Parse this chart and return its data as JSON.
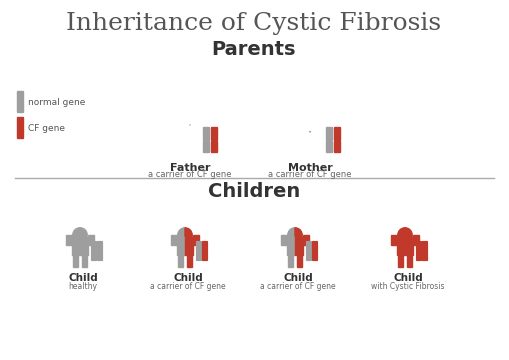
{
  "title": "Inheritance of Cystic Fibrosis",
  "title_fontsize": 18,
  "parents_label": "Parents",
  "children_label": "Children",
  "section_label_fontsize": 14,
  "gray": "#9e9e9e",
  "red": "#c0392b",
  "light_gray": "#bdbdbd",
  "bg_color": "#ffffff",
  "legend_normal": "normal gene",
  "legend_cf": "CF gene",
  "father_label": "Father",
  "father_sub": "a carrier of CF gene",
  "mother_label": "Mother",
  "mother_sub": "a carrier of CF gene",
  "child_labels": [
    "Child",
    "Child",
    "Child",
    "Child"
  ],
  "child_subs": [
    "healthy",
    "a carrier of CF gene",
    "a carrier of CF gene",
    "with Cystic Fibrosis"
  ]
}
